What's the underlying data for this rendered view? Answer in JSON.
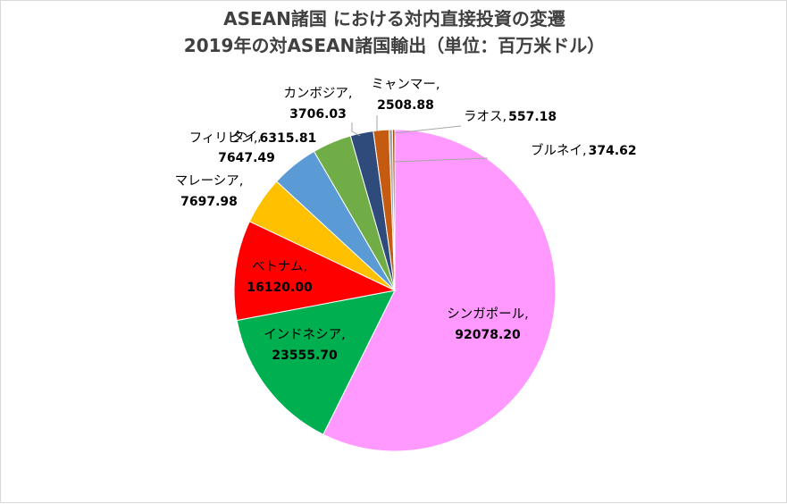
{
  "chart_data": {
    "type": "pie",
    "title": "ASEAN諸国 における対内直接投資の変遷",
    "subtitle": "2019年の対ASEAN諸国輸出（単位：百万米ドル）",
    "slices": [
      {
        "label": "シンガポール",
        "value": 92078.2,
        "value_text": "92078.20",
        "color": "#ff99ff"
      },
      {
        "label": "インドネシア",
        "value": 23555.7,
        "value_text": "23555.70",
        "color": "#00b050"
      },
      {
        "label": "ベトナム",
        "value": 16120.0,
        "value_text": "16120.00",
        "color": "#ff0000"
      },
      {
        "label": "マレーシア",
        "value": 7697.98,
        "value_text": "7697.98",
        "color": "#ffc000"
      },
      {
        "label": "タイ",
        "value": 7647.49,
        "value_text": "7647.49",
        "color": "#5b9bd5"
      },
      {
        "label": "フィリピン",
        "value": 6315.81,
        "value_text": "6315.81",
        "color": "#70ad47"
      },
      {
        "label": "カンボジア",
        "value": 3706.03,
        "value_text": "3706.03",
        "color": "#2f4b7c"
      },
      {
        "label": "ミャンマー",
        "value": 2508.88,
        "value_text": "2508.88",
        "color": "#c55a11"
      },
      {
        "label": "ラオス",
        "value": 557.18,
        "value_text": "557.18",
        "color": "#a5a5a5"
      },
      {
        "label": "ブルネイ",
        "value": 374.62,
        "value_text": "374.62",
        "color": "#9e480e"
      }
    ],
    "start_angle_deg": 0,
    "direction": "clockwise",
    "legend": "none",
    "data_labels": "category, value"
  }
}
